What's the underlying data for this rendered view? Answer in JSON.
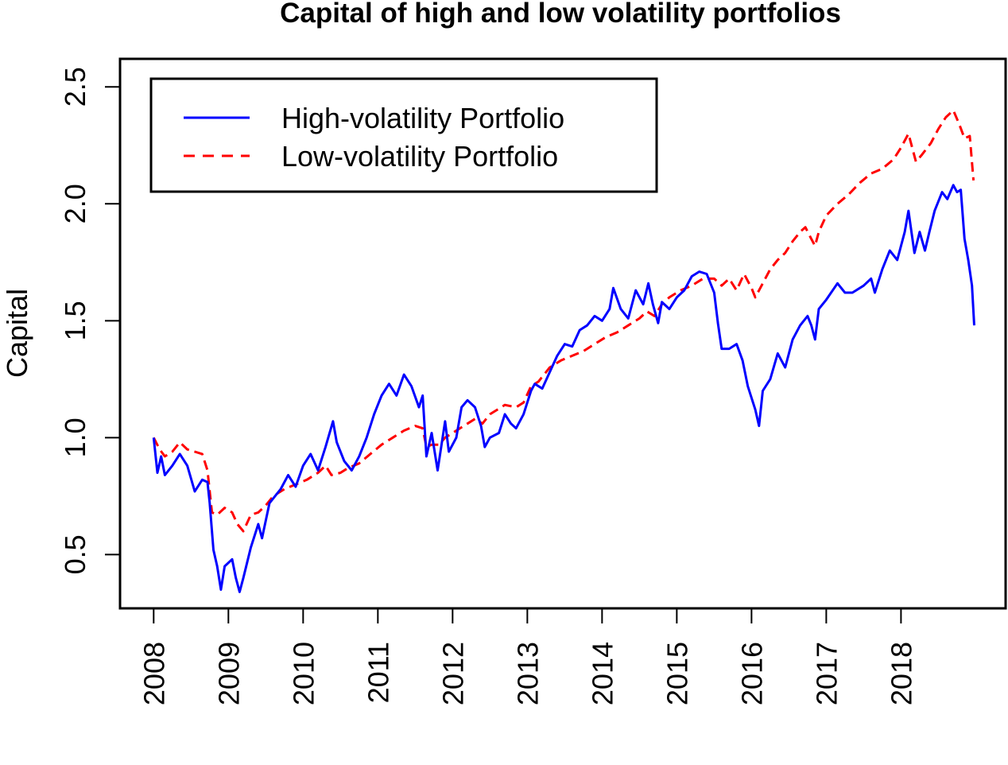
{
  "chart_data": {
    "type": "line",
    "title": "Capital of high and low volatility portfolios",
    "xlabel": "",
    "ylabel": "Capital",
    "xlim": [
      2007.55,
      2019.4
    ],
    "ylim": [
      0.27,
      2.62
    ],
    "x_ticks": [
      2008,
      2009,
      2010,
      2011,
      2012,
      2013,
      2014,
      2015,
      2016,
      2017,
      2018
    ],
    "x_tick_labels": [
      "2008",
      "2009",
      "2010",
      "2011",
      "2012",
      "2013",
      "2014",
      "2015",
      "2016",
      "2017",
      "2018"
    ],
    "y_ticks": [
      0.5,
      1.0,
      1.5,
      2.0,
      2.5
    ],
    "y_tick_labels": [
      "0.5",
      "1.0",
      "1.5",
      "2.0",
      "2.5"
    ],
    "grid": false,
    "legend": {
      "position": "top-left",
      "entries": [
        {
          "label": "High-volatility Portfolio",
          "color": "#0000ff",
          "style": "solid"
        },
        {
          "label": "Low-volatility Portfolio",
          "color": "#ff0000",
          "style": "dashed"
        }
      ]
    },
    "series": [
      {
        "name": "High-volatility Portfolio",
        "color": "#0000ff",
        "style": "solid",
        "x": [
          2008.0,
          2008.05,
          2008.1,
          2008.15,
          2008.25,
          2008.35,
          2008.45,
          2008.55,
          2008.65,
          2008.72,
          2008.75,
          2008.8,
          2008.85,
          2008.9,
          2008.95,
          2009.05,
          2009.1,
          2009.15,
          2009.2,
          2009.3,
          2009.4,
          2009.45,
          2009.55,
          2009.7,
          2009.8,
          2009.9,
          2010.0,
          2010.1,
          2010.2,
          2010.3,
          2010.4,
          2010.45,
          2010.55,
          2010.65,
          2010.75,
          2010.85,
          2010.95,
          2011.05,
          2011.15,
          2011.25,
          2011.35,
          2011.45,
          2011.55,
          2011.6,
          2011.65,
          2011.72,
          2011.8,
          2011.9,
          2011.95,
          2012.05,
          2012.12,
          2012.2,
          2012.3,
          2012.38,
          2012.43,
          2012.5,
          2012.62,
          2012.7,
          2012.78,
          2012.85,
          2012.95,
          2013.05,
          2013.1,
          2013.2,
          2013.3,
          2013.4,
          2013.5,
          2013.6,
          2013.7,
          2013.8,
          2013.9,
          2014.0,
          2014.1,
          2014.15,
          2014.25,
          2014.35,
          2014.45,
          2014.55,
          2014.62,
          2014.68,
          2014.75,
          2014.8,
          2014.9,
          2015.0,
          2015.1,
          2015.2,
          2015.3,
          2015.4,
          2015.5,
          2015.55,
          2015.6,
          2015.7,
          2015.8,
          2015.88,
          2015.95,
          2016.05,
          2016.1,
          2016.15,
          2016.25,
          2016.35,
          2016.45,
          2016.55,
          2016.65,
          2016.75,
          2016.8,
          2016.85,
          2016.9,
          2017.0,
          2017.15,
          2017.25,
          2017.35,
          2017.5,
          2017.6,
          2017.65,
          2017.75,
          2017.85,
          2017.95,
          2018.05,
          2018.1,
          2018.18,
          2018.25,
          2018.32,
          2018.38,
          2018.45,
          2018.55,
          2018.62,
          2018.7,
          2018.75,
          2018.8,
          2018.85,
          2018.9,
          2018.95,
          2018.98
        ],
        "values": [
          1.0,
          0.85,
          0.92,
          0.84,
          0.88,
          0.93,
          0.88,
          0.77,
          0.82,
          0.81,
          0.72,
          0.52,
          0.45,
          0.35,
          0.45,
          0.48,
          0.4,
          0.34,
          0.4,
          0.53,
          0.63,
          0.57,
          0.72,
          0.78,
          0.84,
          0.79,
          0.88,
          0.93,
          0.86,
          0.96,
          1.07,
          0.98,
          0.9,
          0.86,
          0.92,
          1.0,
          1.1,
          1.18,
          1.23,
          1.18,
          1.27,
          1.22,
          1.13,
          1.18,
          0.92,
          1.02,
          0.86,
          1.07,
          0.94,
          1.0,
          1.13,
          1.16,
          1.13,
          1.05,
          0.96,
          1.0,
          1.02,
          1.1,
          1.06,
          1.04,
          1.1,
          1.2,
          1.23,
          1.21,
          1.28,
          1.35,
          1.4,
          1.39,
          1.46,
          1.48,
          1.52,
          1.5,
          1.55,
          1.64,
          1.55,
          1.51,
          1.63,
          1.57,
          1.66,
          1.57,
          1.49,
          1.58,
          1.55,
          1.6,
          1.63,
          1.69,
          1.71,
          1.7,
          1.62,
          1.49,
          1.38,
          1.38,
          1.4,
          1.33,
          1.22,
          1.12,
          1.05,
          1.2,
          1.25,
          1.36,
          1.3,
          1.42,
          1.48,
          1.52,
          1.48,
          1.42,
          1.55,
          1.59,
          1.66,
          1.62,
          1.62,
          1.65,
          1.68,
          1.62,
          1.72,
          1.8,
          1.76,
          1.88,
          1.97,
          1.79,
          1.88,
          1.8,
          1.88,
          1.97,
          2.05,
          2.02,
          2.08,
          2.05,
          2.06,
          1.85,
          1.76,
          1.65,
          1.48
        ]
      },
      {
        "name": "Low-volatility Portfolio",
        "color": "#ff0000",
        "style": "dashed",
        "x": [
          2008.0,
          2008.08,
          2008.15,
          2008.25,
          2008.35,
          2008.45,
          2008.55,
          2008.65,
          2008.72,
          2008.78,
          2008.85,
          2008.95,
          2009.05,
          2009.12,
          2009.2,
          2009.3,
          2009.4,
          2009.5,
          2009.6,
          2009.75,
          2009.9,
          2010.05,
          2010.2,
          2010.3,
          2010.38,
          2010.5,
          2010.6,
          2010.75,
          2010.9,
          2011.05,
          2011.2,
          2011.35,
          2011.5,
          2011.6,
          2011.65,
          2011.72,
          2011.82,
          2011.9,
          2012.0,
          2012.15,
          2012.3,
          2012.4,
          2012.5,
          2012.6,
          2012.7,
          2012.85,
          2012.95,
          2013.05,
          2013.15,
          2013.3,
          2013.45,
          2013.6,
          2013.75,
          2013.9,
          2014.05,
          2014.2,
          2014.35,
          2014.5,
          2014.6,
          2014.7,
          2014.8,
          2014.9,
          2015.05,
          2015.2,
          2015.35,
          2015.5,
          2015.6,
          2015.7,
          2015.8,
          2015.9,
          2016.0,
          2016.05,
          2016.15,
          2016.25,
          2016.35,
          2016.45,
          2016.55,
          2016.65,
          2016.72,
          2016.8,
          2016.85,
          2016.9,
          2017.0,
          2017.15,
          2017.3,
          2017.45,
          2017.6,
          2017.75,
          2017.9,
          2018.0,
          2018.1,
          2018.15,
          2018.2,
          2018.28,
          2018.4,
          2018.5,
          2018.6,
          2018.7,
          2018.78,
          2018.85,
          2018.92,
          2018.97
        ],
        "values": [
          1.0,
          0.95,
          0.92,
          0.94,
          0.98,
          0.95,
          0.94,
          0.93,
          0.86,
          0.68,
          0.67,
          0.7,
          0.68,
          0.63,
          0.6,
          0.67,
          0.68,
          0.71,
          0.75,
          0.78,
          0.8,
          0.82,
          0.85,
          0.88,
          0.84,
          0.85,
          0.87,
          0.89,
          0.93,
          0.97,
          1.0,
          1.03,
          1.05,
          1.04,
          0.96,
          0.97,
          0.97,
          1.0,
          1.02,
          1.05,
          1.08,
          1.06,
          1.1,
          1.12,
          1.14,
          1.13,
          1.15,
          1.22,
          1.24,
          1.3,
          1.33,
          1.35,
          1.37,
          1.4,
          1.43,
          1.45,
          1.48,
          1.51,
          1.54,
          1.52,
          1.57,
          1.6,
          1.63,
          1.65,
          1.68,
          1.68,
          1.65,
          1.68,
          1.63,
          1.7,
          1.64,
          1.6,
          1.66,
          1.72,
          1.76,
          1.79,
          1.84,
          1.88,
          1.9,
          1.85,
          1.82,
          1.88,
          1.95,
          2.0,
          2.04,
          2.09,
          2.13,
          2.15,
          2.19,
          2.24,
          2.3,
          2.24,
          2.18,
          2.21,
          2.26,
          2.32,
          2.37,
          2.4,
          2.34,
          2.28,
          2.29,
          2.1
        ]
      }
    ]
  }
}
